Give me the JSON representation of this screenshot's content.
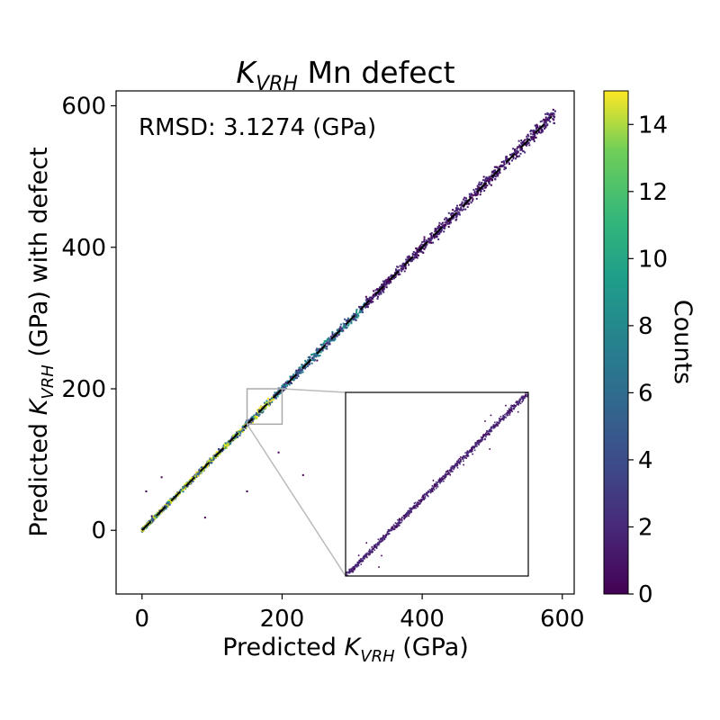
{
  "chart_data": {
    "type": "scatter",
    "title_main": "K",
    "title_sub": "VRH",
    "title_rest": " Mn defect",
    "xlabel_pre": "Predicted ",
    "xlabel_var": "K",
    "xlabel_sub": "VRH",
    "xlabel_post": " (GPa)",
    "ylabel_pre": "Predicted ",
    "ylabel_var": "K",
    "ylabel_sub": "VRH",
    "ylabel_post": " (GPa) with defect",
    "annotation": "RMSD: 3.1274 (GPa)",
    "xlim": [
      -37,
      617
    ],
    "ylim": [
      -90,
      621
    ],
    "xticks": [
      0,
      200,
      400,
      600
    ],
    "yticks": [
      0,
      200,
      400,
      600
    ],
    "xtick_labels": [
      "0",
      "200",
      "400",
      "600"
    ],
    "ytick_labels": [
      "0",
      "200",
      "400",
      "600"
    ],
    "reference_line": {
      "style": "dashed",
      "x": [
        0,
        585
      ],
      "y": [
        0,
        585
      ]
    },
    "inset": {
      "xlim": [
        150,
        200
      ],
      "ylim": [
        150,
        200
      ],
      "placement": "lower-right"
    },
    "colorbar": {
      "label": "Counts",
      "min": 0,
      "max": 15,
      "colormap": "viridis",
      "ticks": [
        0,
        2,
        4,
        6,
        8,
        10,
        12,
        14
      ],
      "tick_labels": [
        "0",
        "2",
        "4",
        "6",
        "8",
        "10",
        "12",
        "14"
      ]
    },
    "rmsd_gpa": 3.1274
  }
}
